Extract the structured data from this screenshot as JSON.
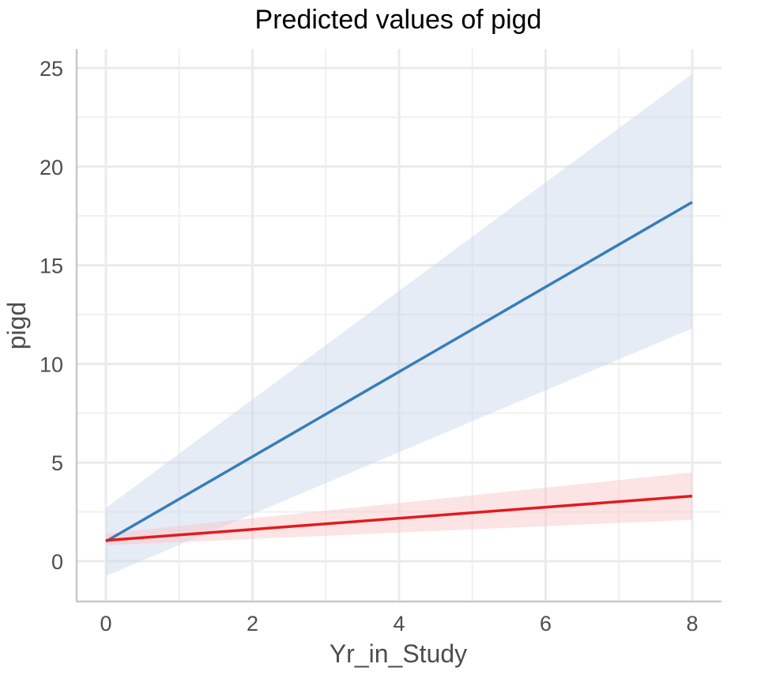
{
  "chart_data": {
    "type": "line",
    "title": "Predicted values of pigd",
    "xlabel": "Yr_in_Study",
    "ylabel": "pigd",
    "xlim": [
      -0.4,
      8.4
    ],
    "ylim": [
      -2,
      26
    ],
    "x_ticks": [
      "0",
      "2",
      "4",
      "6",
      "8"
    ],
    "x_tick_values": [
      0,
      2,
      4,
      6,
      8
    ],
    "y_ticks": [
      "0",
      "5",
      "10",
      "15",
      "20",
      "25"
    ],
    "y_tick_values": [
      0,
      5,
      10,
      15,
      20,
      25
    ],
    "grid": true,
    "legend": "none",
    "series": [
      {
        "name": "blue",
        "color": "#377eb8",
        "ribbon_color": "#c6d5ea",
        "x": [
          0,
          8
        ],
        "y": [
          1.0,
          18.2
        ],
        "lower": [
          -0.75,
          11.8
        ],
        "upper": [
          2.7,
          24.7
        ]
      },
      {
        "name": "red",
        "color": "#e41a1c",
        "ribbon_color": "#f9c4c6",
        "x": [
          0,
          8
        ],
        "y": [
          1.05,
          3.3
        ],
        "lower": [
          0.8,
          2.1
        ],
        "upper": [
          1.4,
          4.5
        ]
      }
    ]
  }
}
